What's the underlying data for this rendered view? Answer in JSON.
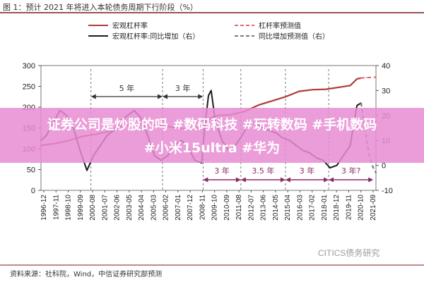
{
  "figure_title": "图 1：预计 2021 年将进入本轮债务周期下行阶段（%）",
  "overlay": {
    "line1": "证券公司是炒股的吗 #数码科技 #玩转数码 #手机数码",
    "line2": "#小米15ultra #华为"
  },
  "source": "资料来源：社科院，Wind，中信证券研究部预测",
  "watermark": "CITICS债务研究",
  "chart_data": {
    "type": "line",
    "legend_position": "top",
    "y_left": {
      "ylim": [
        0,
        300
      ],
      "ticks": [
        0,
        50,
        100,
        150,
        200,
        250,
        300
      ]
    },
    "y_right": {
      "ylim": [
        -10,
        40
      ],
      "ticks": [
        -10,
        0,
        10,
        20,
        30,
        40
      ]
    },
    "x_tick_labels": [
      "1996-12",
      "1997-11",
      "1998-10",
      "1999-09",
      "2000-08",
      "2001-07",
      "2002-06",
      "2003-05",
      "2004-04",
      "2005-03",
      "2006-02",
      "2007-01",
      "2007-12",
      "2008-11",
      "2009-10",
      "2010-09",
      "2011-08",
      "2012-07",
      "2013-06",
      "2014-05",
      "2015-04",
      "2016-03",
      "2017-02",
      "2018-01",
      "2018-12",
      "2019-11",
      "2020-10",
      "2021-09"
    ],
    "series": [
      {
        "name": "宏观杠杆率",
        "axis": "left",
        "style": "solid",
        "color": "#b23a3a",
        "x": [
          1996.9,
          1998.0,
          1999.0,
          2000.0,
          2001.0,
          2002.0,
          2003.0,
          2004.0,
          2005.0,
          2006.0,
          2007.0,
          2008.0,
          2008.9,
          2009.5,
          2010.0,
          2011.0,
          2012.0,
          2013.0,
          2014.0,
          2015.0,
          2016.0,
          2017.0,
          2018.0,
          2019.0,
          2019.8,
          2020.3,
          2020.6
        ],
        "values": [
          108,
          113,
          120,
          130,
          135,
          142,
          155,
          160,
          158,
          155,
          150,
          147,
          152,
          175,
          180,
          182,
          190,
          205,
          215,
          225,
          238,
          242,
          243,
          248,
          252,
          268,
          270
        ]
      },
      {
        "name": "杠杆率预测值",
        "axis": "left",
        "style": "dashed",
        "color": "#e06a6a",
        "x": [
          2020.6,
          2021.0,
          2021.7
        ],
        "values": [
          270,
          271,
          272
        ]
      },
      {
        "name": "宏观杠杆率:同比增加（右）",
        "axis": "right",
        "style": "solid",
        "color": "#1c1c1c",
        "x": [
          1996.9,
          1997.3,
          1997.8,
          1998.3,
          1998.8,
          1999.3,
          1999.8,
          2000.3,
          2000.8,
          2001.3,
          2001.8,
          2002.3,
          2002.8,
          2003.3,
          2003.8,
          2004.3,
          2004.8,
          2005.3,
          2005.8,
          2006.3,
          2006.8,
          2007.3,
          2007.8,
          2008.3,
          2008.8,
          2009.0,
          2009.3,
          2009.5,
          2009.8,
          2010.3,
          2010.8,
          2011.3,
          2011.8,
          2012.3,
          2012.8,
          2013.3,
          2013.8,
          2014.3,
          2014.8,
          2015.3,
          2015.8,
          2016.3,
          2016.8,
          2017.3,
          2017.8,
          2018.3,
          2018.8,
          2019.3,
          2019.8,
          2020.0,
          2020.3,
          2020.6
        ],
        "values": [
          10,
          12,
          17,
          22,
          20,
          15,
          6,
          -2,
          4,
          8,
          12,
          14,
          18,
          20,
          22,
          19,
          12,
          4,
          2,
          4,
          8,
          10,
          7,
          2,
          1,
          14,
          28,
          30,
          18,
          10,
          6,
          8,
          12,
          17,
          17,
          15,
          14,
          13,
          11,
          10,
          8,
          6,
          5,
          3,
          2,
          -1,
          0,
          4,
          8,
          15,
          24,
          25
        ]
      },
      {
        "name": "同比增加预测值（右）",
        "axis": "right",
        "style": "dashed",
        "color": "#7a7a7a",
        "x": [
          2020.6,
          2020.9,
          2021.2,
          2021.5,
          2021.7
        ],
        "values": [
          25,
          14,
          4,
          -1,
          -3
        ]
      }
    ],
    "annotations": {
      "cycle_spans": [
        "5 年",
        "3 年"
      ],
      "downturn_spans": [
        "3 年",
        "3.5 年",
        "3 年",
        "3 年?"
      ]
    }
  }
}
